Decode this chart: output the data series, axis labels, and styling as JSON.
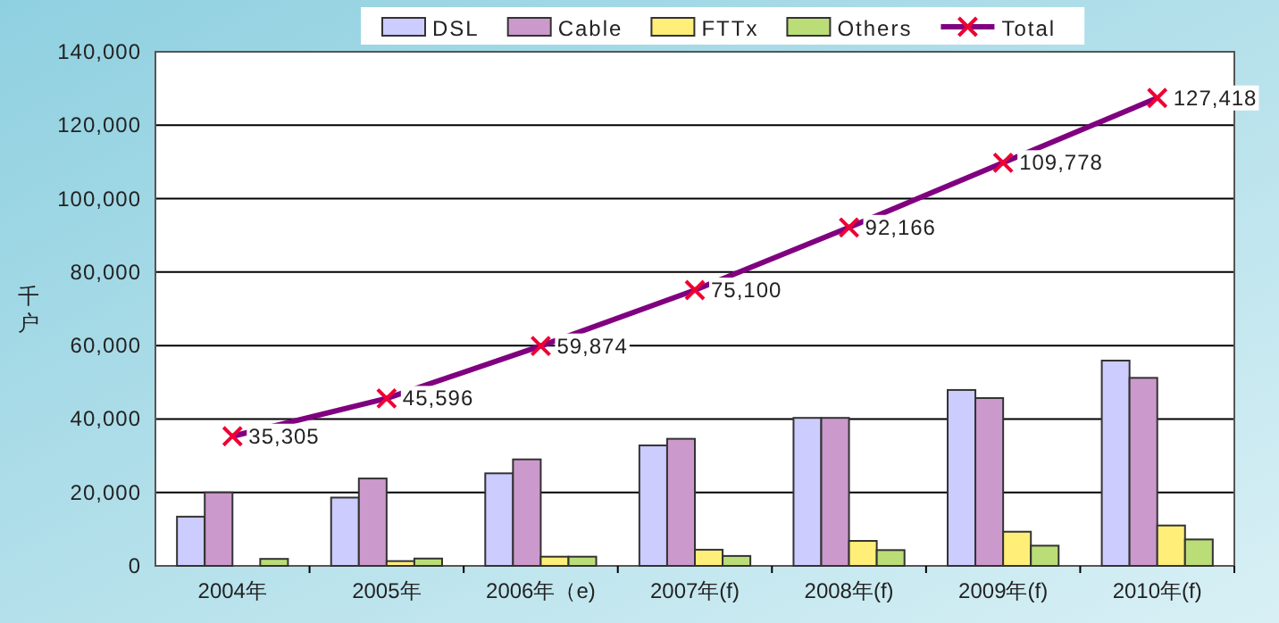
{
  "chart_data": {
    "type": "bar",
    "ylabel": "千户",
    "categories": [
      "2004年",
      "2005年",
      "2006年（e)",
      "2007年(f)",
      "2008年(f)",
      "2009年(f)",
      "2010年(f)"
    ],
    "series": [
      {
        "name": "DSL",
        "color": "#ccccff",
        "values": [
          13400,
          18600,
          25200,
          32800,
          40300,
          47900,
          55900
        ]
      },
      {
        "name": "Cable",
        "color": "#cc99cc",
        "values": [
          20000,
          23800,
          29000,
          34600,
          40300,
          45700,
          51200
        ]
      },
      {
        "name": "FTTx",
        "color": "#ffee77",
        "values": [
          null,
          1300,
          2500,
          4400,
          6800,
          9300,
          11000
        ]
      },
      {
        "name": "Others",
        "color": "#bbdd77",
        "values": [
          1900,
          2000,
          2500,
          2700,
          4300,
          5500,
          7200
        ]
      },
      {
        "name": "Total",
        "type": "line",
        "color": "#800080",
        "marker": "cross",
        "values": [
          35305,
          45596,
          59874,
          75100,
          92166,
          109778,
          127418
        ],
        "value_labels": [
          "35,305",
          "45,596",
          "59,874",
          "75,100",
          "92,166",
          "109,778",
          "127,418"
        ]
      }
    ],
    "ylim": [
      0,
      140000
    ],
    "yticks": [
      {
        "value": 0,
        "label": "0"
      },
      {
        "value": 20000,
        "label": "20,000"
      },
      {
        "value": 40000,
        "label": "40,000"
      },
      {
        "value": 60000,
        "label": "60,000"
      },
      {
        "value": 80000,
        "label": "80,000"
      },
      {
        "value": 100000,
        "label": "100,000"
      },
      {
        "value": 120000,
        "label": "120,000"
      },
      {
        "value": 140000,
        "label": "140,000"
      }
    ],
    "grid": "y",
    "legend": "top"
  }
}
